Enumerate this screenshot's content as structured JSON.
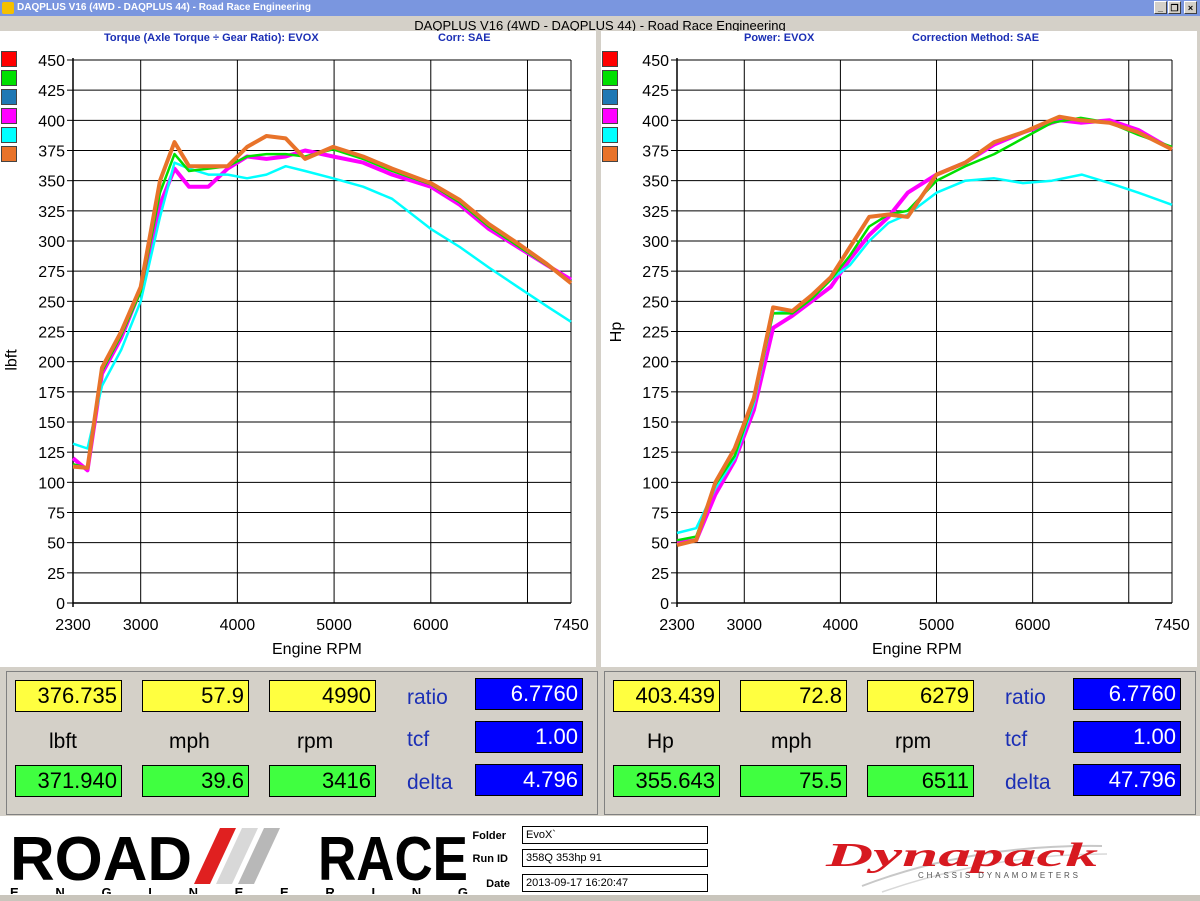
{
  "window": {
    "title": "DAQPLUS V16 (4WD - DAQPLUS 44) - Road Race Engineering",
    "heading": "DAQPLUS V16 (4WD - DAQPLUS 44) - Road Race Engineering",
    "controls": {
      "minimize": "_",
      "restore": "❐",
      "close": "×"
    }
  },
  "legend_colors": [
    "#ff0000",
    "#00e000",
    "#1f78b4",
    "#ff00ff",
    "#00ffff",
    "#e8732a"
  ],
  "torque_panel": {
    "title_left": "Torque (Axle Torque ÷ Gear Ratio): EVOX",
    "title_right": "Corr: SAE",
    "ylabel": "lbft",
    "xlabel": "Engine RPM"
  },
  "power_panel": {
    "title_left": "Power: EVOX",
    "title_right": "Correction Method: SAE",
    "ylabel": "Hp",
    "xlabel": "Engine RPM"
  },
  "chart_data": [
    {
      "type": "line",
      "title": "Torque (Axle Torque ÷ Gear Ratio): EVOX",
      "xlabel": "Engine RPM",
      "ylabel": "lbft",
      "xlim": [
        2300,
        7450
      ],
      "ylim": [
        0,
        450
      ],
      "x_ticks": [
        "2300",
        "3000",
        "4000",
        "5000",
        "6000",
        "7450"
      ],
      "y_ticks": [
        "0",
        "25",
        "50",
        "75",
        "100",
        "125",
        "150",
        "175",
        "200",
        "225",
        "250",
        "275",
        "300",
        "325",
        "350",
        "375",
        "400",
        "425",
        "450"
      ],
      "grid": true,
      "series": [
        {
          "color": "#ff00ff",
          "x": [
            2300,
            2450,
            2600,
            2800,
            3000,
            3200,
            3350,
            3500,
            3700,
            3900,
            4100,
            4300,
            4500,
            4700,
            4990,
            5300,
            5600,
            6000,
            6300,
            6600,
            6900,
            7200,
            7450
          ],
          "y": [
            120,
            110,
            190,
            220,
            260,
            330,
            360,
            345,
            345,
            360,
            370,
            368,
            370,
            375,
            370,
            365,
            355,
            345,
            330,
            310,
            295,
            280,
            268
          ]
        },
        {
          "color": "#00ffff",
          "x": [
            2300,
            2450,
            2600,
            2800,
            3000,
            3200,
            3350,
            3500,
            3700,
            3900,
            4100,
            4300,
            4500,
            4700,
            4990,
            5300,
            5600,
            6000,
            6300,
            6600,
            6900,
            7200,
            7450
          ],
          "y": [
            132,
            128,
            180,
            210,
            250,
            320,
            365,
            360,
            355,
            355,
            352,
            355,
            362,
            358,
            352,
            345,
            335,
            310,
            295,
            278,
            262,
            246,
            233
          ]
        },
        {
          "color": "#00e000",
          "x": [
            2300,
            2450,
            2600,
            2800,
            3000,
            3200,
            3350,
            3500,
            3700,
            3900,
            4100,
            4300,
            4500,
            4700,
            4990,
            5300,
            5600,
            6000,
            6300,
            6600,
            6900,
            7200,
            7450
          ],
          "y": [
            115,
            112,
            192,
            222,
            258,
            340,
            372,
            358,
            360,
            362,
            370,
            372,
            372,
            370,
            376,
            368,
            358,
            347,
            332,
            312,
            296,
            280,
            266
          ]
        },
        {
          "color": "#e8732a",
          "x": [
            2300,
            2450,
            2600,
            2800,
            3000,
            3200,
            3350,
            3500,
            3700,
            3900,
            4100,
            4300,
            4500,
            4700,
            4990,
            5300,
            5600,
            6000,
            6300,
            6600,
            6900,
            7200,
            7450
          ],
          "y": [
            113,
            112,
            195,
            225,
            262,
            350,
            382,
            362,
            362,
            362,
            378,
            387,
            385,
            368,
            378,
            370,
            360,
            348,
            334,
            314,
            298,
            281,
            265
          ]
        }
      ]
    },
    {
      "type": "line",
      "title": "Power: EVOX",
      "xlabel": "Engine RPM",
      "ylabel": "Hp",
      "xlim": [
        2300,
        7450
      ],
      "ylim": [
        0,
        450
      ],
      "x_ticks": [
        "2300",
        "3000",
        "4000",
        "5000",
        "6000",
        "7450"
      ],
      "y_ticks": [
        "0",
        "25",
        "50",
        "75",
        "100",
        "125",
        "150",
        "175",
        "200",
        "225",
        "250",
        "275",
        "300",
        "325",
        "350",
        "375",
        "400",
        "425",
        "450"
      ],
      "grid": true,
      "series": [
        {
          "color": "#ff00ff",
          "x": [
            2300,
            2500,
            2700,
            2900,
            3100,
            3300,
            3500,
            3700,
            3900,
            4100,
            4300,
            4500,
            4700,
            5000,
            5300,
            5600,
            5900,
            6279,
            6500,
            6800,
            7100,
            7450
          ],
          "y": [
            50,
            52,
            90,
            118,
            160,
            228,
            238,
            250,
            262,
            285,
            305,
            320,
            340,
            355,
            365,
            380,
            390,
            400,
            398,
            400,
            392,
            376
          ]
        },
        {
          "color": "#00ffff",
          "x": [
            2300,
            2500,
            2700,
            2900,
            3100,
            3300,
            3500,
            3700,
            3900,
            4100,
            4300,
            4500,
            4700,
            5000,
            5300,
            5600,
            5900,
            6200,
            6511,
            6800,
            7100,
            7450
          ],
          "y": [
            58,
            62,
            95,
            120,
            165,
            240,
            242,
            252,
            268,
            280,
            300,
            315,
            322,
            340,
            350,
            352,
            348,
            350,
            355,
            348,
            340,
            330
          ]
        },
        {
          "color": "#00e000",
          "x": [
            2300,
            2500,
            2700,
            2900,
            3100,
            3300,
            3500,
            3700,
            3900,
            4100,
            4300,
            4500,
            4700,
            5000,
            5300,
            5600,
            5900,
            6200,
            6500,
            6800,
            7100,
            7450
          ],
          "y": [
            52,
            55,
            98,
            122,
            168,
            240,
            240,
            252,
            268,
            288,
            312,
            322,
            325,
            350,
            362,
            372,
            385,
            398,
            402,
            398,
            388,
            378
          ]
        },
        {
          "color": "#e8732a",
          "x": [
            2300,
            2500,
            2700,
            2900,
            3100,
            3300,
            3500,
            3700,
            3900,
            4100,
            4300,
            4500,
            4700,
            5000,
            5300,
            5600,
            5900,
            6279,
            6500,
            6800,
            7100,
            7450
          ],
          "y": [
            48,
            52,
            100,
            128,
            170,
            245,
            242,
            255,
            270,
            295,
            320,
            322,
            320,
            355,
            365,
            382,
            390,
            403,
            400,
            398,
            390,
            376
          ]
        }
      ]
    }
  ],
  "readout_left": {
    "top": [
      "376.735",
      "57.9",
      "4990"
    ],
    "units": [
      "lbft",
      "mph",
      "rpm"
    ],
    "bottom": [
      "371.940",
      "39.6",
      "3416"
    ],
    "labels": [
      "ratio",
      "tcf",
      "delta"
    ],
    "values": [
      "6.7760",
      "1.00",
      "4.796"
    ]
  },
  "readout_right": {
    "top": [
      "403.439",
      "72.8",
      "6279"
    ],
    "units": [
      "Hp",
      "mph",
      "rpm"
    ],
    "bottom": [
      "355.643",
      "75.5",
      "6511"
    ],
    "labels": [
      "ratio",
      "tcf",
      "delta"
    ],
    "values": [
      "6.7760",
      "1.00",
      "47.796"
    ]
  },
  "meta": {
    "folder_label": "Folder",
    "folder_value": "EvoX`",
    "runid_label": "Run ID",
    "runid_value": "358Q 353hp 91",
    "date_label": "Date",
    "date_value": "2013-09-17 16:20:47"
  },
  "logos": {
    "rre_road": "ROAD",
    "rre_race": "RACE",
    "rre_sub": "ENGINEERING",
    "dynapack": "Dynapack",
    "dynapack_sub": "CHASSIS DYNAMOMETERS"
  }
}
